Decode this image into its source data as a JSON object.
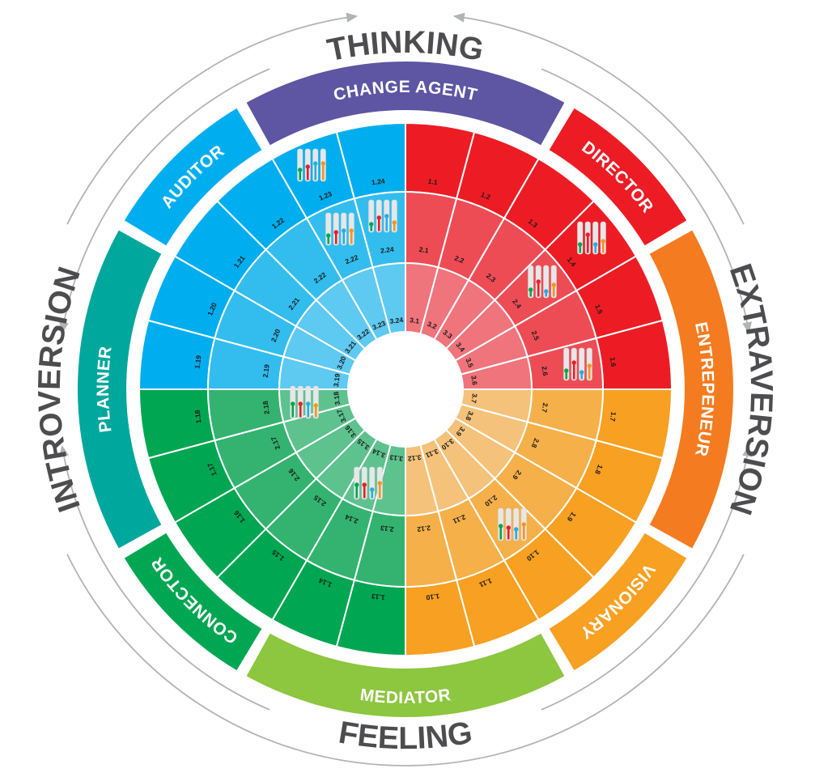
{
  "axes": {
    "top": "THINKING",
    "right": "EXTRAVERSION",
    "bottom": "FEELING",
    "left": "INTROVERSION"
  },
  "categories": [
    {
      "label": "CHANGE AGENT",
      "color": "#5e55a3"
    },
    {
      "label": "DIRECTOR",
      "color": "#ed1c24"
    },
    {
      "label": "ENTREPENEUR",
      "color": "#f47b20"
    },
    {
      "label": "VISIONARY",
      "color": "#f7a021"
    },
    {
      "label": "MEDIATOR",
      "color": "#8dc63f"
    },
    {
      "label": "CONNECTOR",
      "color": "#00a651"
    },
    {
      "label": "PLANNER",
      "color": "#00a79d"
    },
    {
      "label": "AUDITOR",
      "color": "#00aeef"
    }
  ],
  "quadrant_colors": {
    "ring1": [
      "#ed1c24",
      "#f7a021",
      "#00a651",
      "#00aeef"
    ],
    "ring2": [
      "#ee4c55",
      "#f5b04a",
      "#33b36f",
      "#33bdee"
    ],
    "ring3": [
      "#ef747c",
      "#f4c27a",
      "#5dc28e",
      "#5ec9f1"
    ]
  },
  "rings": {
    "ring1": [
      "1.1",
      "1.2",
      "1.3",
      "1.4",
      "1.5",
      "1.6",
      "1.7",
      "1.8",
      "1.9",
      "1.10",
      "1.11",
      "1.10",
      "1.13",
      "1.14",
      "1.15",
      "1.16",
      "1.17",
      "1.18",
      "1.19",
      "1.20",
      "1.21",
      "1.22",
      "1.23",
      "1.24"
    ],
    "ring2": [
      "2.1",
      "2.2",
      "2.3",
      "2.4",
      "2.5",
      "2.6",
      "2.7",
      "2.8",
      "2.9",
      "2.10",
      "2.11",
      "2.12",
      "2.13",
      "2.14",
      "2.15",
      "2.16",
      "2.17",
      "2.18",
      "2.19",
      "2.20",
      "2.21",
      "2.22",
      "2.22",
      "2.24"
    ],
    "ring3": [
      "3.1",
      "3.2",
      "3.3",
      "3.4",
      "3.5",
      "3.6",
      "3.7",
      "3.8",
      "3.9",
      "3.10",
      "3.11",
      "3.12",
      "3.13",
      "3.14",
      "3.15",
      "3.16",
      "3.17",
      "3.18",
      "3.19",
      "3.20",
      "3.21",
      "3.22",
      "3.23",
      "3.24"
    ]
  },
  "indicator_colors": [
    "#00a651",
    "#ed1c24",
    "#29abe2",
    "#f7941d"
  ],
  "indicators": [
    {
      "levels": [
        0.35,
        0.45,
        0.55,
        0.55
      ]
    },
    {
      "levels": [
        0.3,
        0.4,
        0.45,
        0.45
      ]
    },
    {
      "levels": [
        0.25,
        0.45,
        0.5,
        0.3
      ]
    },
    {
      "levels": [
        0.3,
        0.6,
        0.3,
        0.4
      ]
    },
    {
      "levels": [
        0.25,
        0.5,
        0.2,
        0.4
      ]
    },
    {
      "levels": [
        0.3,
        0.55,
        0.25,
        0.45
      ]
    },
    {
      "levels": [
        0.45,
        0.45,
        0.45,
        0.4
      ]
    },
    {
      "levels": [
        0.45,
        0.45,
        0.3,
        0.5
      ]
    },
    {
      "levels": [
        0.45,
        0.4,
        0.35,
        0.5
      ]
    }
  ],
  "arrow_color": "#b1b3b6",
  "axis_label_color": "#4d4d4f"
}
